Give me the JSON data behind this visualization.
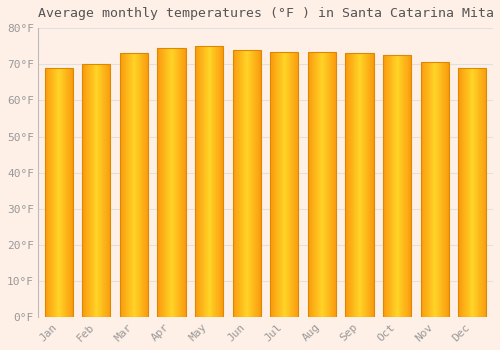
{
  "title": "Average monthly temperatures (°F ) in Santa Catarina Mita",
  "months": [
    "Jan",
    "Feb",
    "Mar",
    "Apr",
    "May",
    "Jun",
    "Jul",
    "Aug",
    "Sep",
    "Oct",
    "Nov",
    "Dec"
  ],
  "values": [
    69,
    70,
    73,
    74.5,
    75,
    74,
    73.5,
    73.5,
    73,
    72.5,
    70.5,
    69
  ],
  "bar_color_left": "#FFCC00",
  "bar_color_center": "#FFD040",
  "bar_color_right": "#FFA000",
  "bar_edge_color": "#DD8800",
  "background_color": "#FEF0E7",
  "grid_color": "#E0E0E0",
  "text_color": "#999999",
  "title_color": "#555555",
  "ylim": [
    0,
    80
  ],
  "yticks": [
    0,
    10,
    20,
    30,
    40,
    50,
    60,
    70,
    80
  ],
  "ytick_labels": [
    "0°F",
    "10°F",
    "20°F",
    "30°F",
    "40°F",
    "50°F",
    "60°F",
    "70°F",
    "80°F"
  ],
  "title_fontsize": 9.5,
  "tick_fontsize": 8,
  "font_family": "monospace"
}
